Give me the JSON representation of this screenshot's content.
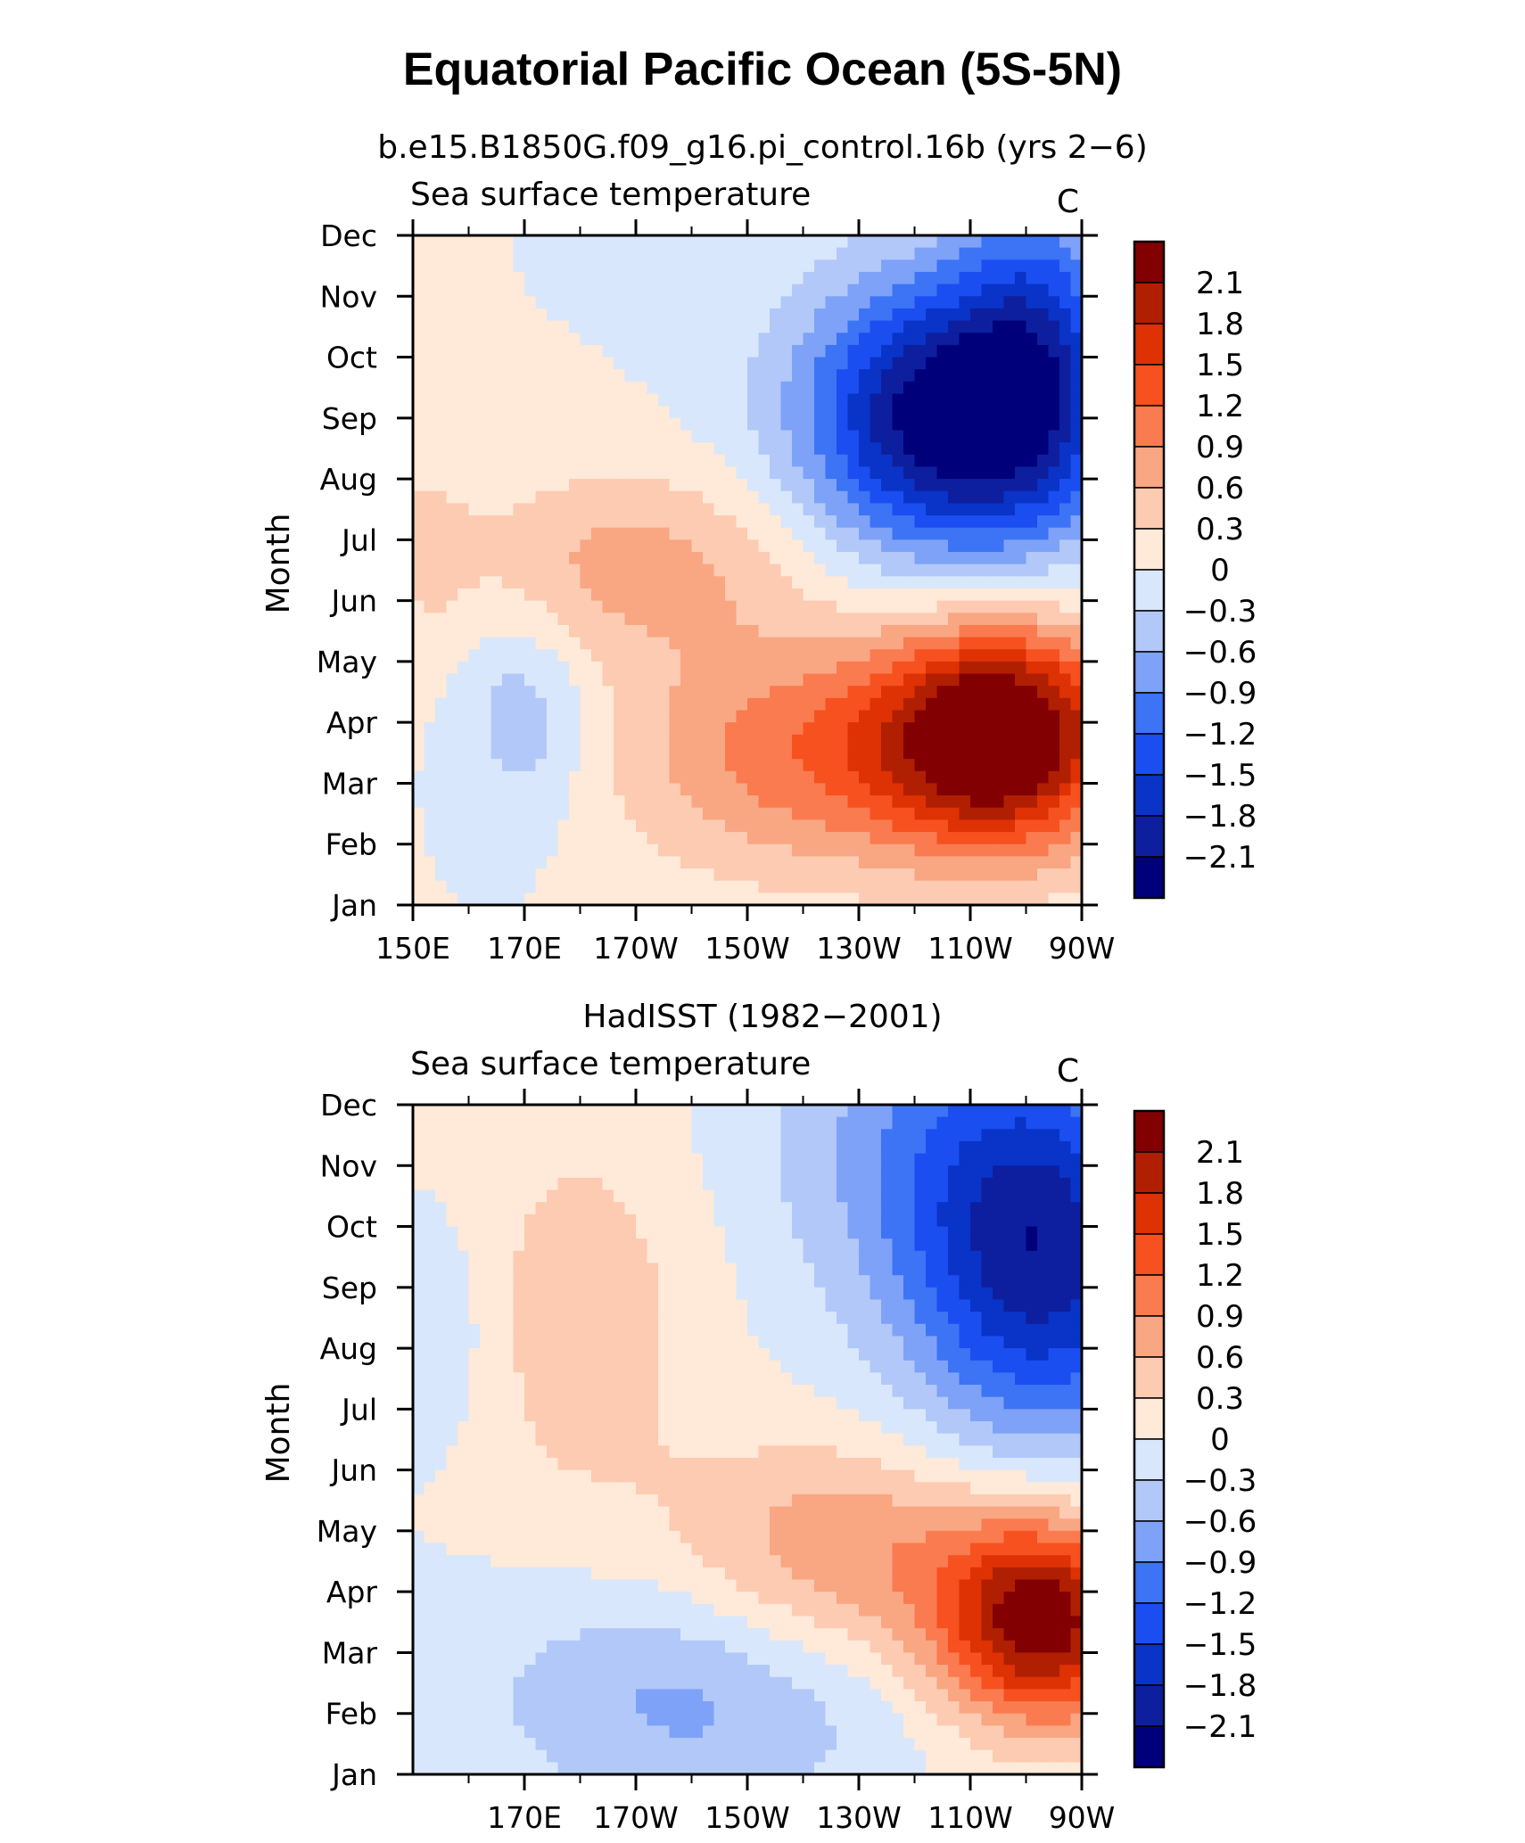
{
  "main_title": "Equatorial Pacific Ocean (5S-5N)",
  "chart_data": [
    {
      "type": "heatmap",
      "title": "b.e15.B1850G.f09_g16.pi_control.16b (yrs 2−6)",
      "subtitle_left": "Sea surface temperature",
      "subtitle_right": "C",
      "ylabel": "Month",
      "x_range": [
        150,
        270
      ],
      "x_tick_values": [
        150,
        170,
        190,
        210,
        230,
        250,
        270
      ],
      "x_tick_labels": [
        "150E",
        "170E",
        "170W",
        "150W",
        "130W",
        "110W",
        "90W"
      ],
      "y_tick_labels": [
        "Jan",
        "Feb",
        "Mar",
        "Apr",
        "May",
        "Jun",
        "Jul",
        "Aug",
        "Sep",
        "Oct",
        "Nov",
        "Dec"
      ],
      "levels": [
        -2.1,
        -1.8,
        -1.5,
        -1.2,
        -0.9,
        -0.6,
        -0.3,
        0,
        0.3,
        0.6,
        0.9,
        1.2,
        1.5,
        1.8,
        2.1
      ],
      "level_labels": [
        "2.1",
        "1.8",
        "1.5",
        "1.2",
        "0.9",
        "0.6",
        "0.3",
        "0",
        "−0.3",
        "−0.6",
        "−0.9",
        "−1.2",
        "−1.5",
        "−1.8",
        "−2.1"
      ],
      "features": [
        {
          "lon": 246,
          "month": 8.0,
          "amp": -2.4,
          "slon": 18,
          "smon": 1.6
        },
        {
          "lon": 262,
          "month": 9.3,
          "amp": -1.0,
          "slon": 10,
          "smon": 2.0
        },
        {
          "lon": 256,
          "month": 2.8,
          "amp": 2.5,
          "slon": 15,
          "smon": 1.3
        },
        {
          "lon": 222,
          "month": 2.5,
          "amp": 1.1,
          "slon": 24,
          "smon": 1.4
        },
        {
          "lon": 190,
          "month": 5.6,
          "amp": 0.7,
          "slon": 22,
          "smon": 1.1
        },
        {
          "lon": 170,
          "month": 3.1,
          "amp": -0.55,
          "slon": 8,
          "smon": 1.2
        },
        {
          "lon": 152,
          "month": 6.0,
          "amp": 0.25,
          "slon": 6,
          "smon": 1.5
        }
      ]
    },
    {
      "type": "heatmap",
      "title": "HadISST (1982−2001)",
      "subtitle_left": "Sea surface temperature",
      "subtitle_right": "C",
      "ylabel": "Month",
      "x_range": [
        150,
        270
      ],
      "x_tick_values": [
        170,
        190,
        210,
        230,
        250,
        270
      ],
      "x_tick_labels": [
        "170E",
        "170W",
        "150W",
        "130W",
        "110W",
        "90W"
      ],
      "y_tick_labels": [
        "Jan",
        "Feb",
        "Mar",
        "Apr",
        "May",
        "Jun",
        "Jul",
        "Aug",
        "Sep",
        "Oct",
        "Nov",
        "Dec"
      ],
      "levels": [
        -2.1,
        -1.8,
        -1.5,
        -1.2,
        -0.9,
        -0.6,
        -0.3,
        0,
        0.3,
        0.6,
        0.9,
        1.2,
        1.5,
        1.8,
        2.1
      ],
      "level_labels": [
        "2.1",
        "1.8",
        "1.5",
        "1.2",
        "0.9",
        "0.6",
        "0.3",
        "0",
        "−0.3",
        "−0.6",
        "−0.9",
        "−1.2",
        "−1.5",
        "−1.8",
        "−2.1"
      ],
      "features": [
        {
          "lon": 263,
          "month": 8.5,
          "amp": -1.9,
          "slon": 17,
          "smon": 2.2
        },
        {
          "lon": 240,
          "month": 10.5,
          "amp": -0.6,
          "slon": 20,
          "smon": 2.0
        },
        {
          "lon": 263,
          "month": 2.5,
          "amp": 2.3,
          "slon": 13,
          "smon": 1.2
        },
        {
          "lon": 228,
          "month": 3.6,
          "amp": 0.9,
          "slon": 22,
          "smon": 1.3
        },
        {
          "lon": 200,
          "month": 1.3,
          "amp": -0.7,
          "slon": 25,
          "smon": 1.4
        },
        {
          "lon": 155,
          "month": 7.3,
          "amp": -0.3,
          "slon": 8,
          "smon": 1.3
        },
        {
          "lon": 180,
          "month": 7.5,
          "amp": 0.5,
          "slon": 15,
          "smon": 2.3
        }
      ]
    }
  ],
  "colors": {
    "palette": [
      "#00007a",
      "#0d1f9e",
      "#0a33c8",
      "#1a4ef0",
      "#3d73f5",
      "#7ea2f7",
      "#b2c8f8",
      "#d8e7fb",
      "#ffe9d8",
      "#fccbb1",
      "#f9a683",
      "#fa7b4f",
      "#f6511f",
      "#de3104",
      "#b01f02",
      "#820002"
    ]
  }
}
